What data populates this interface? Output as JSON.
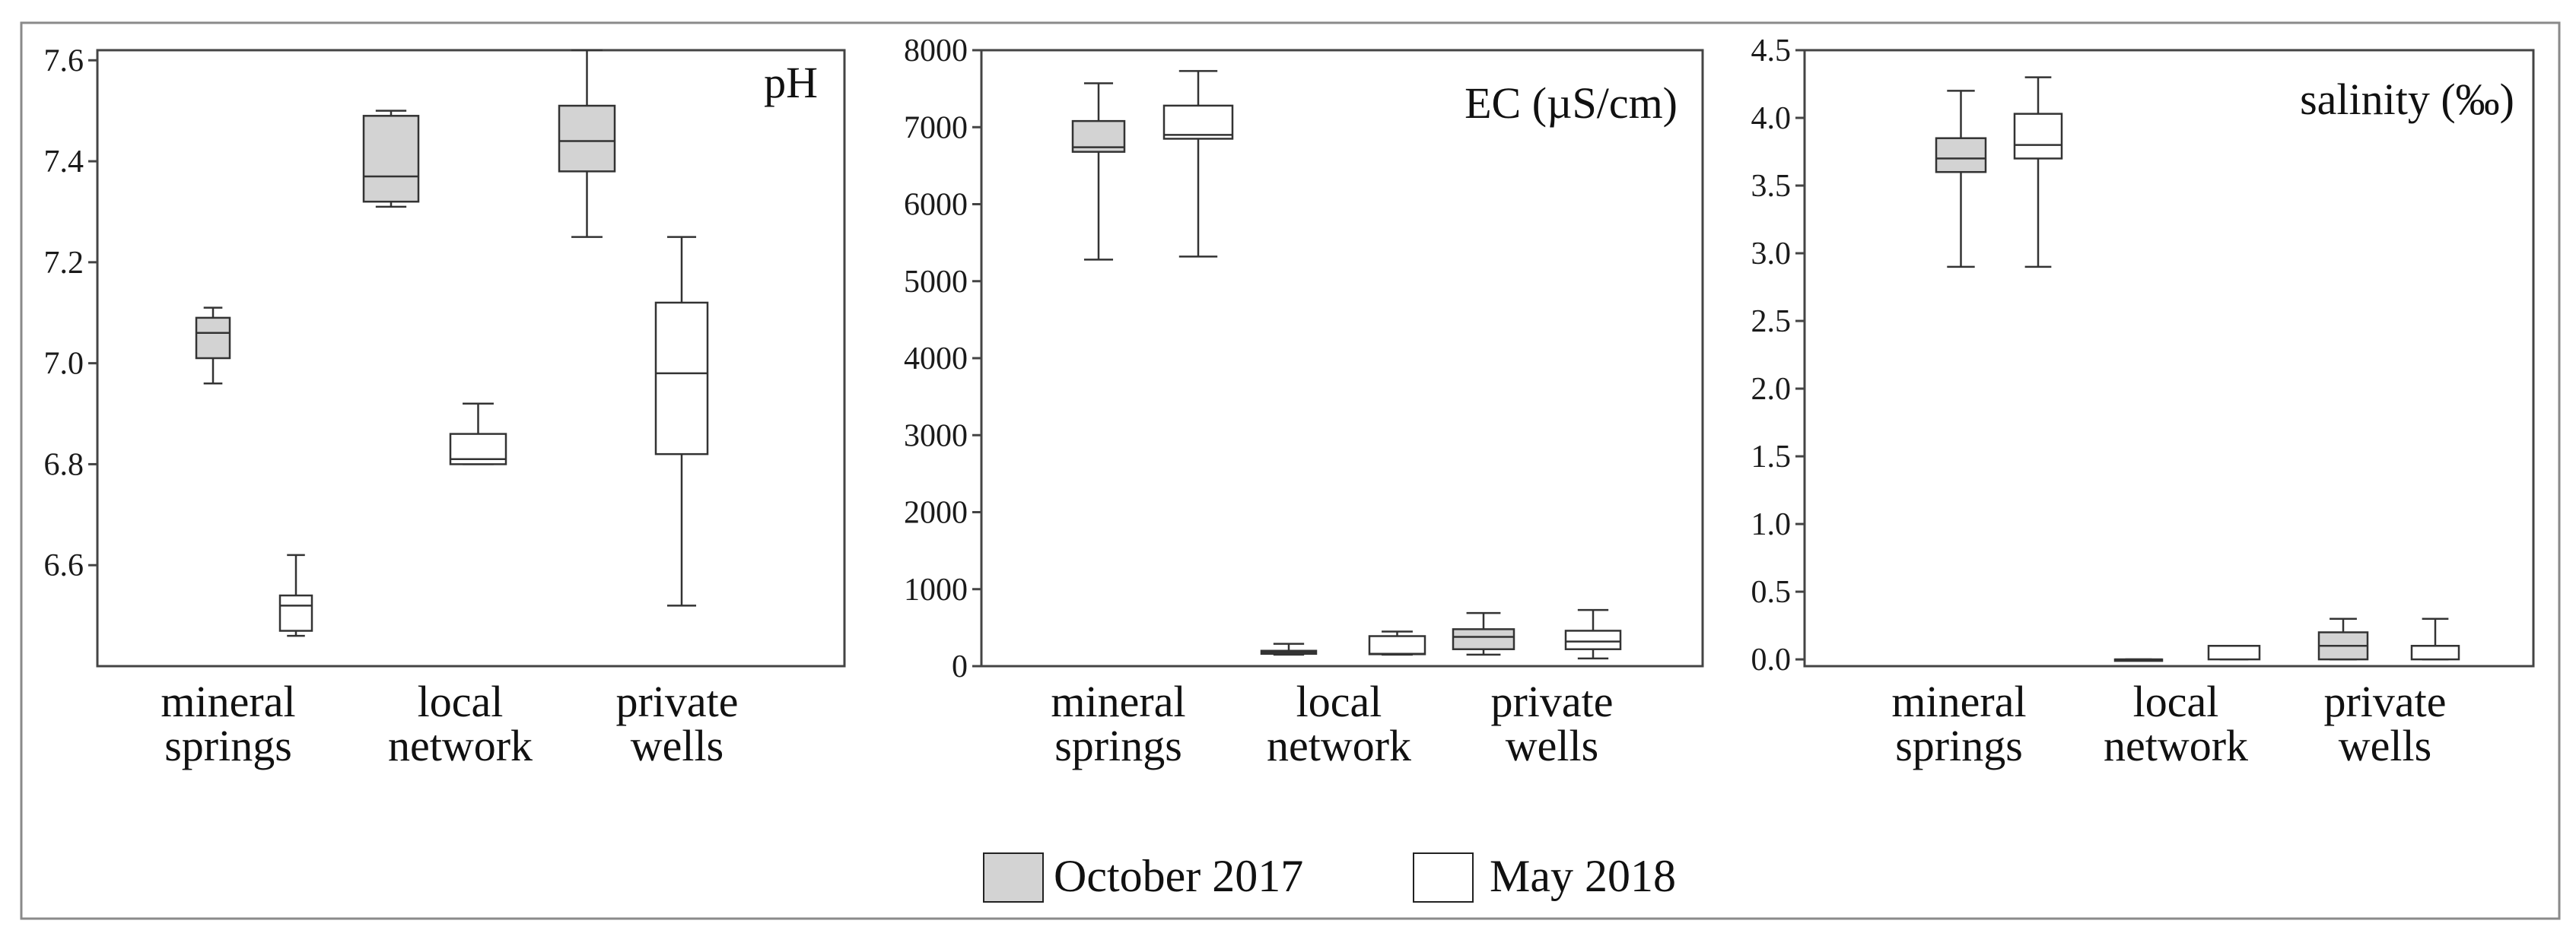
{
  "chart_data": [
    {
      "type": "boxplot",
      "title": "pH",
      "ylim": [
        6.4,
        7.62
      ],
      "yticks": [
        6.6,
        6.8,
        7.0,
        7.2,
        7.4,
        7.6
      ],
      "ytick_labels": [
        "6.6",
        "6.8",
        "7.0",
        "7.2",
        "7.4",
        "7.6"
      ],
      "categories": [
        [
          "mineral",
          "springs"
        ],
        [
          "local",
          "network"
        ],
        [
          "private",
          "wells"
        ]
      ],
      "series": [
        {
          "name": "October 2017",
          "color": "#d3d3d3",
          "boxes": [
            {
              "category": "mineral springs",
              "min": 6.96,
              "q1": 7.01,
              "median": 7.06,
              "q3": 7.09,
              "max": 7.11
            },
            {
              "category": "local network",
              "min": 7.31,
              "q1": 7.32,
              "median": 7.37,
              "q3": 7.49,
              "max": 7.5
            },
            {
              "category": "private wells",
              "min": 7.25,
              "q1": 7.38,
              "median": 7.44,
              "q3": 7.51,
              "max": 7.62
            }
          ]
        },
        {
          "name": "May 2018",
          "color": "#ffffff",
          "boxes": [
            {
              "category": "mineral springs",
              "min": 6.46,
              "q1": 6.47,
              "median": 6.52,
              "q3": 6.54,
              "max": 6.62
            },
            {
              "category": "local network",
              "min": 6.8,
              "q1": 6.8,
              "median": 6.81,
              "q3": 6.86,
              "max": 6.92
            },
            {
              "category": "private wells",
              "min": 6.52,
              "q1": 6.82,
              "median": 6.98,
              "q3": 7.12,
              "max": 7.25
            }
          ]
        }
      ]
    },
    {
      "type": "boxplot",
      "title": "EC (µS/cm)",
      "ylim": [
        0,
        8000
      ],
      "yticks": [
        0,
        1000,
        2000,
        3000,
        4000,
        5000,
        6000,
        7000,
        8000
      ],
      "ytick_labels": [
        "0",
        "1000",
        "2000",
        "3000",
        "4000",
        "5000",
        "6000",
        "7000",
        "8000"
      ],
      "categories": [
        [
          "mineral",
          "springs"
        ],
        [
          "local",
          "network"
        ],
        [
          "private",
          "wells"
        ]
      ],
      "series": [
        {
          "name": "October 2017",
          "color": "#d3d3d3",
          "boxes": [
            {
              "category": "mineral springs",
              "min": 5280,
              "q1": 6680,
              "median": 6740,
              "q3": 7080,
              "max": 7570
            },
            {
              "category": "local network",
              "min": 150,
              "q1": 160,
              "median": 175,
              "q3": 200,
              "max": 290
            },
            {
              "category": "private wells",
              "min": 150,
              "q1": 220,
              "median": 380,
              "q3": 480,
              "max": 690
            }
          ]
        },
        {
          "name": "May 2018",
          "color": "#ffffff",
          "boxes": [
            {
              "category": "mineral springs",
              "min": 5320,
              "q1": 6850,
              "median": 6900,
              "q3": 7280,
              "max": 7730
            },
            {
              "category": "local network",
              "min": 150,
              "q1": 155,
              "median": 160,
              "q3": 390,
              "max": 450
            },
            {
              "category": "private wells",
              "min": 100,
              "q1": 220,
              "median": 320,
              "q3": 460,
              "max": 730
            }
          ]
        }
      ]
    },
    {
      "type": "boxplot",
      "title": "salinity (‰)",
      "ylim": [
        -0.05,
        4.5
      ],
      "yticks": [
        0.0,
        0.5,
        1.0,
        1.5,
        2.0,
        2.5,
        3.0,
        3.5,
        4.0,
        4.5
      ],
      "ytick_labels": [
        "0.0",
        "0.5",
        "1.0",
        "1.5",
        "2.0",
        "2.5",
        "3.0",
        "3.5",
        "4.0",
        "4.5"
      ],
      "categories": [
        [
          "mineral",
          "springs"
        ],
        [
          "local",
          "network"
        ],
        [
          "private",
          "wells"
        ]
      ],
      "series": [
        {
          "name": "October 2017",
          "color": "#d3d3d3",
          "boxes": [
            {
              "category": "mineral springs",
              "min": 2.9,
              "q1": 3.6,
              "median": 3.7,
              "q3": 3.85,
              "max": 4.2
            },
            {
              "category": "local network",
              "min": 0.0,
              "q1": 0.0,
              "median": 0.0,
              "q3": 0.0,
              "max": 0.0
            },
            {
              "category": "private wells",
              "min": 0.0,
              "q1": 0.0,
              "median": 0.1,
              "q3": 0.2,
              "max": 0.3
            }
          ]
        },
        {
          "name": "May 2018",
          "color": "#ffffff",
          "boxes": [
            {
              "category": "mineral springs",
              "min": 2.9,
              "q1": 3.7,
              "median": 3.8,
              "q3": 4.03,
              "max": 4.3
            },
            {
              "category": "local network",
              "min": 0.0,
              "q1": 0.0,
              "median": 0.1,
              "q3": 0.1,
              "max": 0.1
            },
            {
              "category": "private wells",
              "min": 0.0,
              "q1": 0.0,
              "median": 0.1,
              "q3": 0.1,
              "max": 0.3
            }
          ]
        }
      ]
    }
  ],
  "legend": {
    "items": [
      {
        "label": "October 2017",
        "color": "#d3d3d3"
      },
      {
        "label": "May 2018",
        "color": "#ffffff"
      }
    ]
  }
}
